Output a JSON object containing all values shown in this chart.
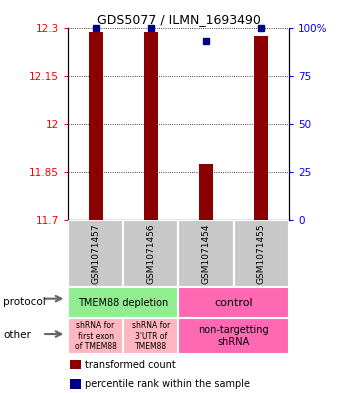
{
  "title": "GDS5077 / ILMN_1693490",
  "samples": [
    "GSM1071457",
    "GSM1071456",
    "GSM1071454",
    "GSM1071455"
  ],
  "red_values": [
    12.285,
    12.285,
    11.875,
    12.275
  ],
  "blue_values": [
    100,
    100,
    93,
    100
  ],
  "ylim_left": [
    11.7,
    12.3
  ],
  "ylim_right": [
    0,
    100
  ],
  "left_ticks": [
    11.7,
    11.85,
    12.0,
    12.15,
    12.3
  ],
  "right_ticks": [
    0,
    25,
    50,
    75,
    100
  ],
  "left_tick_labels": [
    "11.7",
    "11.85",
    "12",
    "12.15",
    "12.3"
  ],
  "right_tick_labels": [
    "0",
    "25",
    "50",
    "75",
    "100%"
  ],
  "protocol_labels": [
    "TMEM88 depletion",
    "control"
  ],
  "other_labels": [
    "shRNA for\nfirst exon\nof TMEM88",
    "shRNA for\n3'UTR of\nTMEM88",
    "non-targetting\nshRNA"
  ],
  "protocol_green": "#90EE90",
  "protocol_pink": "#FF69B4",
  "other_light_pink": "#FFB6C1",
  "other_pink": "#FF69B4",
  "sample_box_color": "#C8C8C8",
  "bar_color": "#8B0000",
  "dot_color": "#00008B",
  "background_color": "#FFFFFF",
  "bar_width": 0.25
}
